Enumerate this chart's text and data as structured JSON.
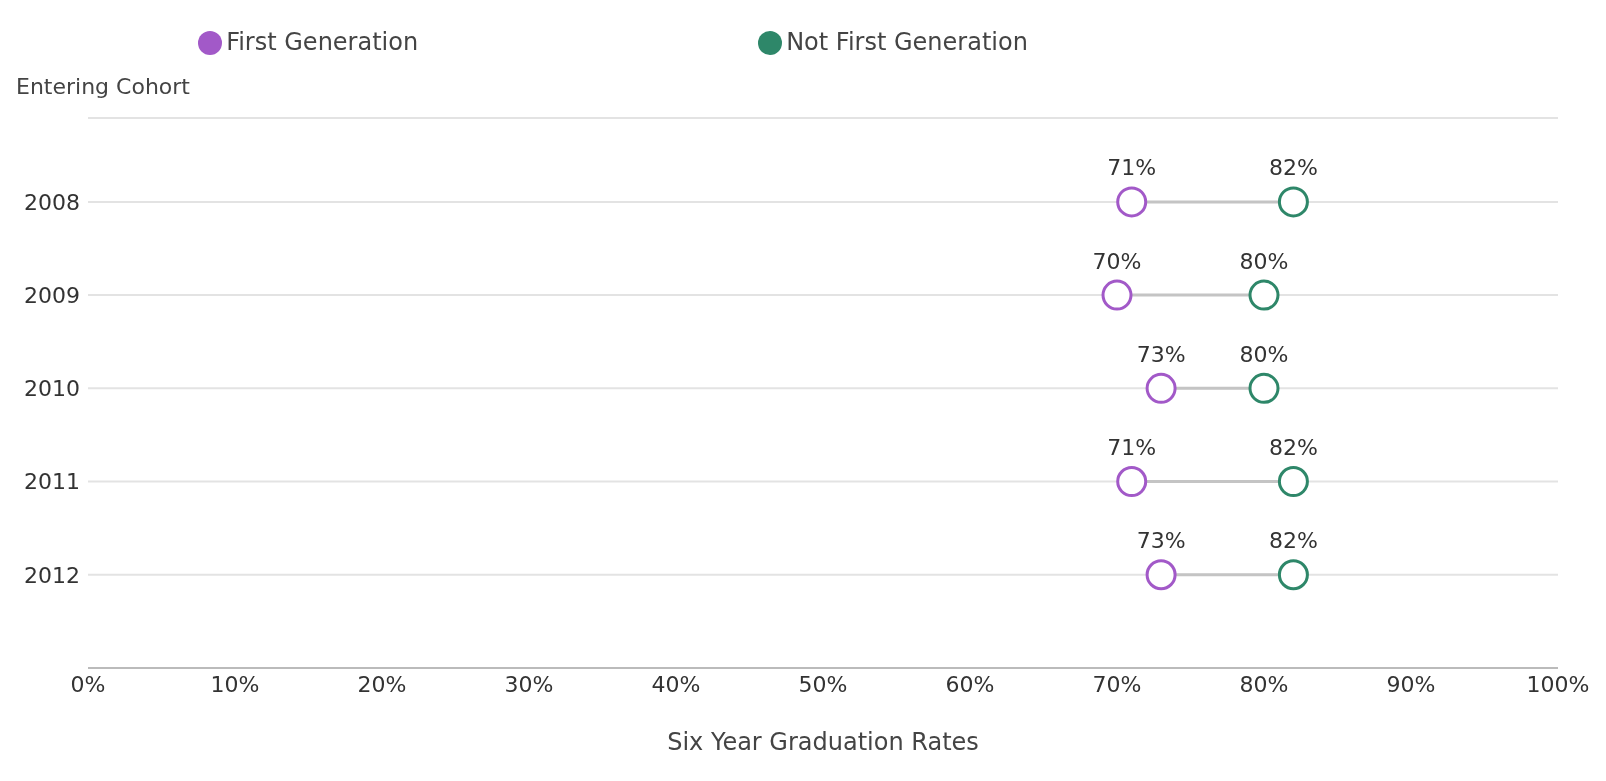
{
  "chart_data": {
    "type": "scatter",
    "xlabel": "Six Year Graduation Rates",
    "ylabel": "Entering Cohort",
    "categories": [
      "2008",
      "2009",
      "2010",
      "2011",
      "2012"
    ],
    "series": [
      {
        "name": "First Generation",
        "color": "#a259c8",
        "values": [
          71,
          70,
          73,
          71,
          73
        ],
        "value_labels": [
          "71%",
          "70%",
          "73%",
          "71%",
          "73%"
        ]
      },
      {
        "name": "Not First Generation",
        "color": "#2e8769",
        "values": [
          82,
          80,
          80,
          82,
          82
        ],
        "value_labels": [
          "82%",
          "80%",
          "80%",
          "82%",
          "82%"
        ]
      }
    ],
    "orientation": "horizontal",
    "xlim": [
      0,
      100
    ],
    "xticks": [
      {
        "value": 0,
        "label": "0%"
      },
      {
        "value": 10,
        "label": "10%"
      },
      {
        "value": 20,
        "label": "20%"
      },
      {
        "value": 30,
        "label": "30%"
      },
      {
        "value": 40,
        "label": "40%"
      },
      {
        "value": 50,
        "label": "50%"
      },
      {
        "value": 60,
        "label": "60%"
      },
      {
        "value": 70,
        "label": "70%"
      },
      {
        "value": 80,
        "label": "80%"
      },
      {
        "value": 90,
        "label": "90%"
      },
      {
        "value": 100,
        "label": "100%"
      }
    ],
    "grid": "y",
    "legend": "top",
    "marker": "circle"
  }
}
